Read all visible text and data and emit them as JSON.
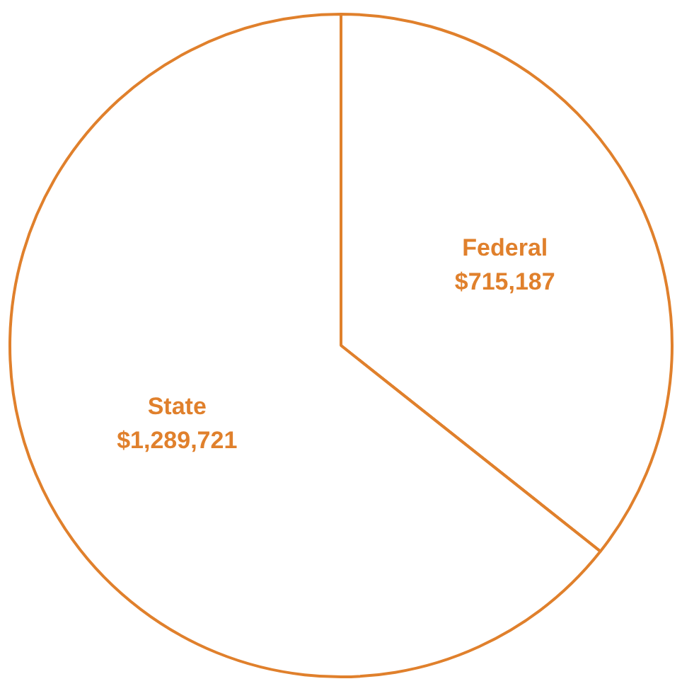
{
  "chart_data": {
    "type": "pie",
    "categories": [
      "Federal",
      "State"
    ],
    "values": [
      715187,
      1289721
    ],
    "value_labels": [
      "$715,187",
      "$1,289,721"
    ],
    "colors": [
      "#e0802c",
      "#e0802c"
    ],
    "legend": false
  }
}
